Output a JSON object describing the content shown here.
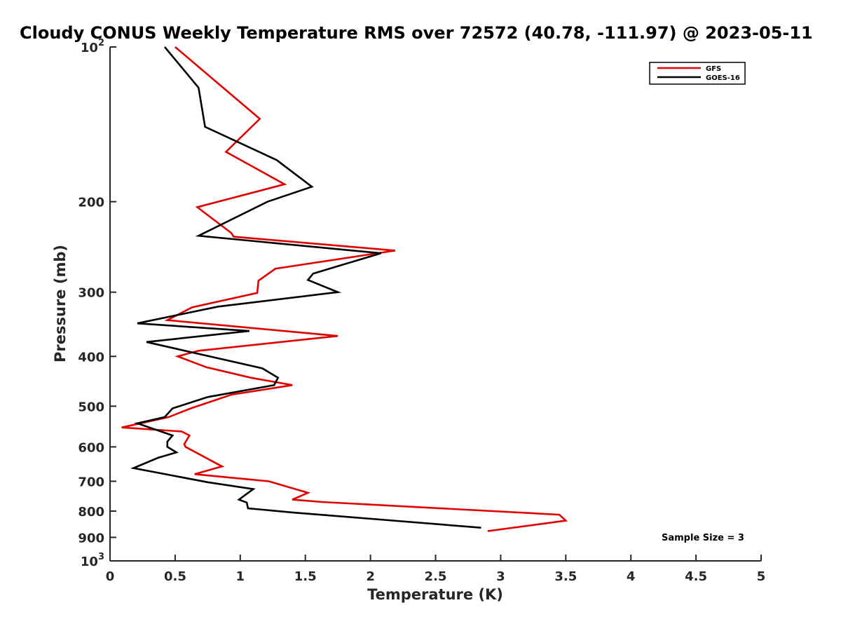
{
  "chart_data": {
    "type": "line",
    "title": "Cloudy CONUS Weekly Temperature RMS over 72572 (40.78, -111.97) @ 2023-05-11",
    "xlabel": "Temperature (K)",
    "ylabel": "Pressure (mb)",
    "xlim": [
      0,
      5
    ],
    "ylim": [
      100,
      1000
    ],
    "yscale": "log",
    "yreversed": true,
    "x_ticks": [
      0,
      0.5,
      1,
      1.5,
      2,
      2.5,
      3,
      3.5,
      4,
      4.5,
      5
    ],
    "x_tick_labels": [
      "0",
      "0.5",
      "1",
      "1.5",
      "2",
      "2.5",
      "3",
      "3.5",
      "4",
      "4.5",
      "5"
    ],
    "y_ticks": [
      100,
      200,
      300,
      400,
      500,
      600,
      700,
      800,
      900,
      1000
    ],
    "y_tick_labels": [
      {
        "base": "10",
        "exp": "2"
      },
      {
        "base": "200",
        "exp": ""
      },
      {
        "base": "300",
        "exp": ""
      },
      {
        "base": "400",
        "exp": ""
      },
      {
        "base": "500",
        "exp": ""
      },
      {
        "base": "600",
        "exp": ""
      },
      {
        "base": "700",
        "exp": ""
      },
      {
        "base": "800",
        "exp": ""
      },
      {
        "base": "900",
        "exp": ""
      },
      {
        "base": "10",
        "exp": "3"
      }
    ],
    "legend_position": "top-right",
    "annotation": "Sample Size = 3",
    "series": [
      {
        "name": "GFS",
        "color": "#e00000",
        "points": [
          [
            0.5,
            100
          ],
          [
            1.15,
            138
          ],
          [
            0.89,
            160
          ],
          [
            1.34,
            185
          ],
          [
            0.67,
            205
          ],
          [
            0.93,
            230
          ],
          [
            0.95,
            234
          ],
          [
            2.19,
            249
          ],
          [
            1.27,
            270
          ],
          [
            1.14,
            285
          ],
          [
            1.13,
            301
          ],
          [
            0.63,
            321
          ],
          [
            0.44,
            340
          ],
          [
            1.75,
            365
          ],
          [
            0.68,
            390
          ],
          [
            0.52,
            400
          ],
          [
            0.74,
            420
          ],
          [
            1.08,
            440
          ],
          [
            1.4,
            455
          ],
          [
            0.93,
            475
          ],
          [
            0.62,
            505
          ],
          [
            0.45,
            525
          ],
          [
            0.09,
            550
          ],
          [
            0.55,
            560
          ],
          [
            0.61,
            570
          ],
          [
            0.57,
            593
          ],
          [
            0.58,
            600
          ],
          [
            0.86,
            655
          ],
          [
            0.65,
            678
          ],
          [
            1.22,
            700
          ],
          [
            1.52,
            737
          ],
          [
            1.4,
            760
          ],
          [
            1.63,
            768
          ],
          [
            3.45,
            813
          ],
          [
            3.5,
            835
          ],
          [
            2.9,
            875
          ]
        ]
      },
      {
        "name": "GOES-16",
        "color": "#000000",
        "points": [
          [
            0.42,
            100
          ],
          [
            0.68,
            120
          ],
          [
            0.73,
            143
          ],
          [
            1.28,
            166
          ],
          [
            1.55,
            187
          ],
          [
            1.21,
            200
          ],
          [
            0.68,
            233
          ],
          [
            2.08,
            252
          ],
          [
            1.56,
            276
          ],
          [
            1.52,
            284
          ],
          [
            1.75,
            300
          ],
          [
            0.83,
            320
          ],
          [
            0.21,
            345
          ],
          [
            1.07,
            357
          ],
          [
            0.28,
            375
          ],
          [
            1.17,
            422
          ],
          [
            1.29,
            440
          ],
          [
            1.26,
            455
          ],
          [
            0.75,
            480
          ],
          [
            0.48,
            505
          ],
          [
            0.42,
            525
          ],
          [
            0.21,
            540
          ],
          [
            0.48,
            570
          ],
          [
            0.44,
            586
          ],
          [
            0.44,
            600
          ],
          [
            0.51,
            615
          ],
          [
            0.37,
            630
          ],
          [
            0.18,
            660
          ],
          [
            0.75,
            703
          ],
          [
            1.1,
            725
          ],
          [
            0.99,
            760
          ],
          [
            1.05,
            770
          ],
          [
            1.06,
            790
          ],
          [
            1.4,
            805
          ],
          [
            2.85,
            862
          ]
        ]
      }
    ]
  }
}
